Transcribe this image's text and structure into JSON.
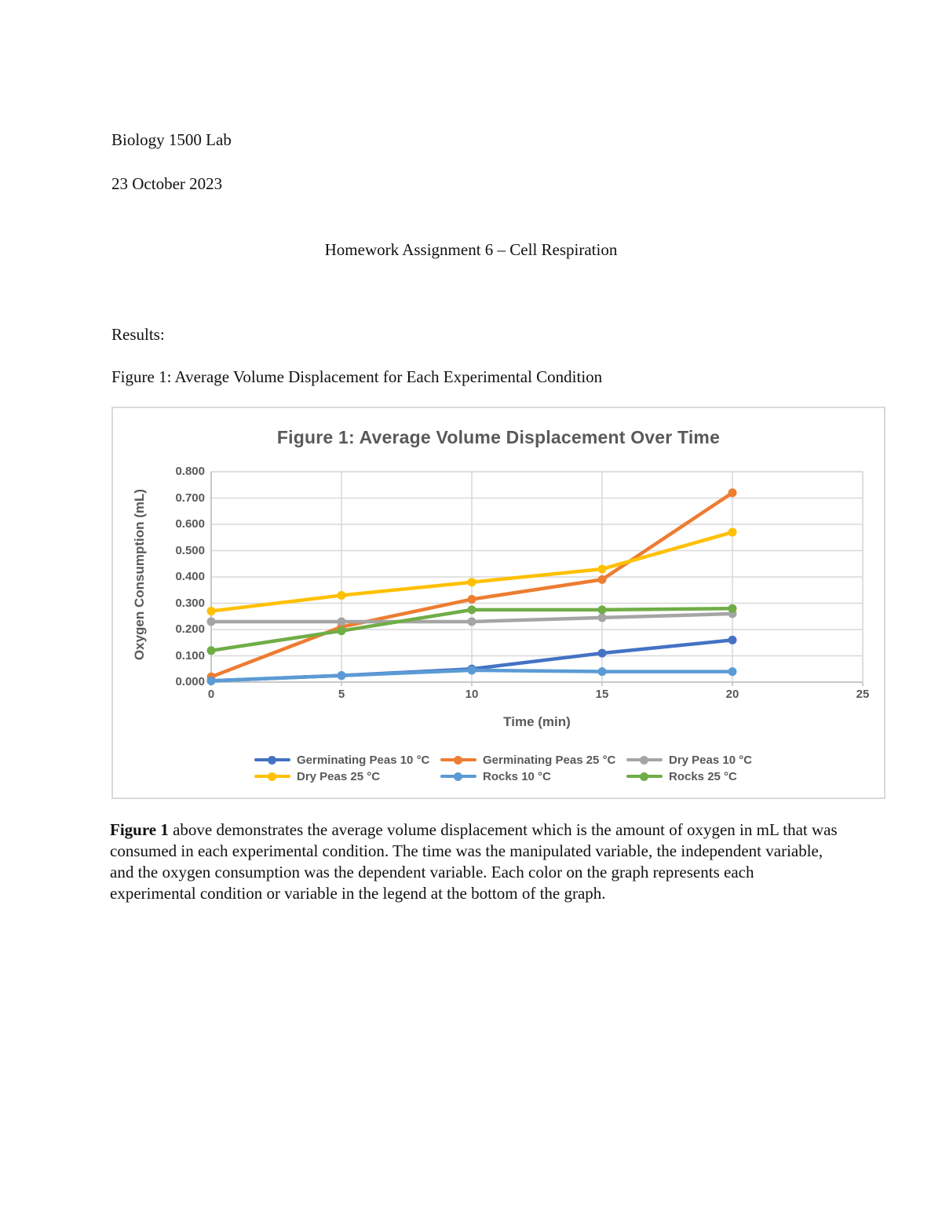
{
  "document": {
    "course": "Biology 1500 Lab",
    "date": "23 October 2023",
    "title": "Homework Assignment 6 – Cell Respiration",
    "results_label": "Results:",
    "figure_caption": "Figure 1: Average Volume Displacement for Each Experimental Condition",
    "figure_para_lead": "Figure 1",
    "figure_para_rest": " above demonstrates the average volume displacement which is the amount of oxygen in mL that was consumed in each experimental condition. The time was the manipulated variable, the independent variable, and the oxygen consumption was the dependent variable. Each color on the graph represents each experimental condition or variable in the legend at the bottom of the graph."
  },
  "chart_data": {
    "type": "line",
    "title": "Figure 1: Average Volume Displacement Over Time",
    "xlabel": "Time (min)",
    "ylabel": "Oxygen Consumption (mL)",
    "x": [
      0,
      5,
      10,
      15,
      20
    ],
    "xlim": [
      0,
      25
    ],
    "ylim": [
      0,
      0.8
    ],
    "x_ticks": [
      0,
      5,
      10,
      15,
      20,
      25
    ],
    "y_tick_step": 0.1,
    "y_tick_format_decimals": 3,
    "grid": true,
    "legend_position": "bottom",
    "series": [
      {
        "name": "Germinating Peas 10 °C",
        "color": "#4472C4",
        "values": [
          0.005,
          0.025,
          0.05,
          0.11,
          0.16
        ]
      },
      {
        "name": "Germinating Peas 25 °C",
        "color": "#ED7D31",
        "values": [
          0.02,
          0.21,
          0.315,
          0.39,
          0.72
        ]
      },
      {
        "name": "Dry Peas 10 °C",
        "color": "#A5A5A5",
        "values": [
          0.23,
          0.23,
          0.23,
          0.245,
          0.26
        ]
      },
      {
        "name": "Dry Peas 25 °C",
        "color": "#FFC000",
        "values": [
          0.27,
          0.33,
          0.38,
          0.43,
          0.57
        ]
      },
      {
        "name": "Rocks 10 °C",
        "color": "#5B9BD5",
        "values": [
          0.005,
          0.025,
          0.045,
          0.04,
          0.04
        ]
      },
      {
        "name": "Rocks 25 °C",
        "color": "#70AD47",
        "values": [
          0.12,
          0.195,
          0.275,
          0.275,
          0.28
        ]
      }
    ],
    "style": {
      "gridline_color": "#d9d9d9",
      "axis_color": "#bfbfbf",
      "text_color": "#595959"
    }
  }
}
